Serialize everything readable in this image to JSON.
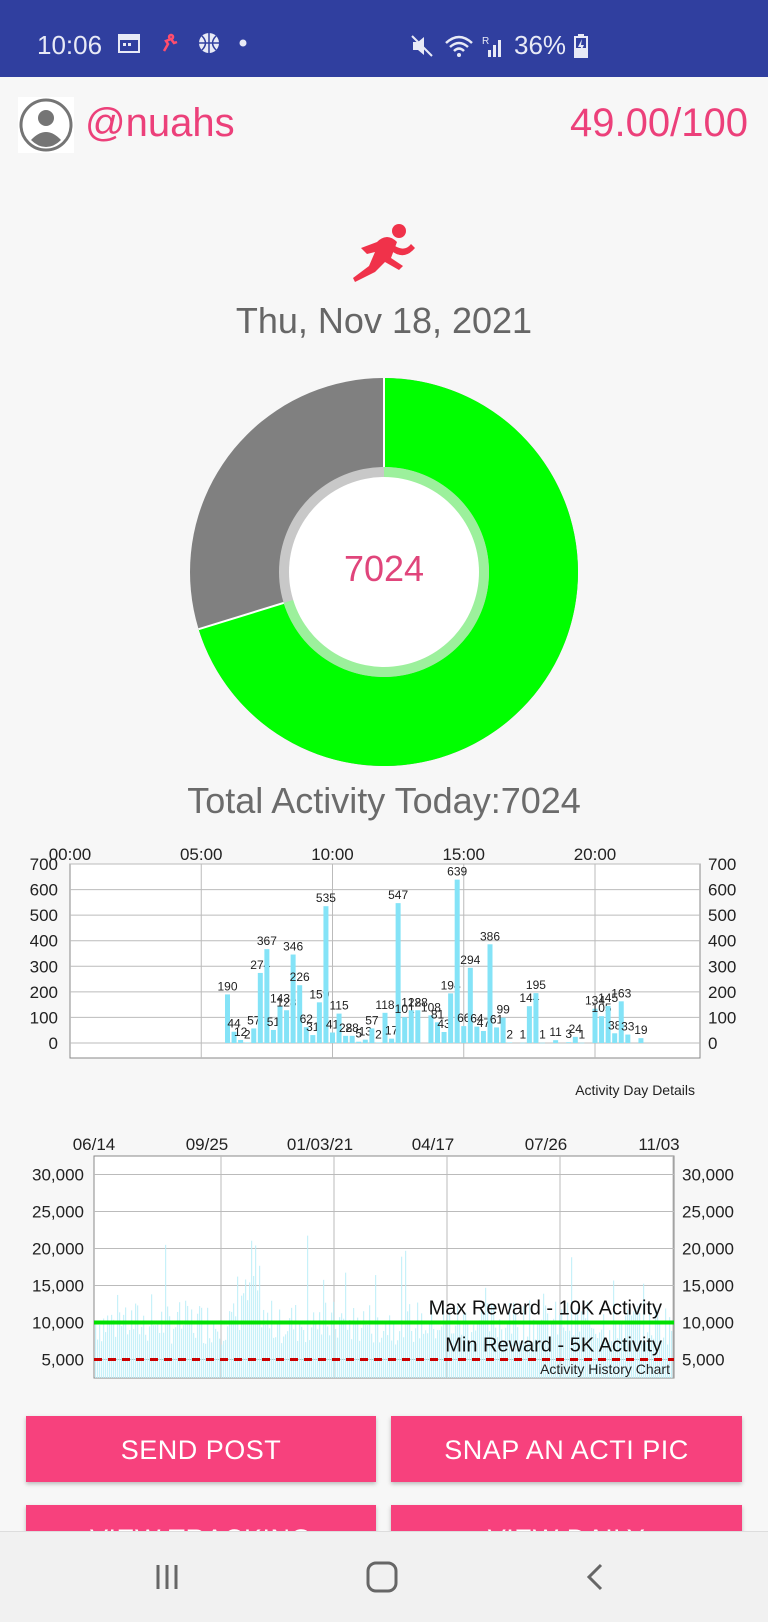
{
  "status_bar": {
    "time": "10:06",
    "battery": "36%"
  },
  "header": {
    "username": "@nuahs",
    "score": "49.00/100"
  },
  "date": "Thu, Nov 18, 2021",
  "donut": {
    "value": "7024",
    "fraction": 0.7024,
    "colors": {
      "filled": "#00ff00",
      "remaining": "#808080",
      "inner_ring": "#9cf09c"
    }
  },
  "total_activity": "Total Activity Today:7024",
  "chart_data": [
    {
      "type": "bar",
      "label": "Activity Day Details",
      "top_ticks": [
        "00:00",
        "05:00",
        "10:00",
        "15:00",
        "20:00"
      ],
      "ylim": [
        0,
        700
      ],
      "yticks": [
        "700",
        "600",
        "500",
        "400",
        "300",
        "200",
        "100",
        "0"
      ],
      "bars": [
        {
          "t": 6.0,
          "v": 190
        },
        {
          "t": 6.25,
          "v": 44
        },
        {
          "t": 6.5,
          "v": 12
        },
        {
          "t": 6.75,
          "v": 2
        },
        {
          "t": 7.0,
          "v": 57
        },
        {
          "t": 7.25,
          "v": 274
        },
        {
          "t": 7.5,
          "v": 367
        },
        {
          "t": 7.75,
          "v": 51
        },
        {
          "t": 8.0,
          "v": 143
        },
        {
          "t": 8.25,
          "v": 128
        },
        {
          "t": 8.5,
          "v": 346
        },
        {
          "t": 8.75,
          "v": 226
        },
        {
          "t": 9.0,
          "v": 62
        },
        {
          "t": 9.25,
          "v": 31
        },
        {
          "t": 9.5,
          "v": 159
        },
        {
          "t": 9.75,
          "v": 535
        },
        {
          "t": 10.0,
          "v": 41
        },
        {
          "t": 10.25,
          "v": 115
        },
        {
          "t": 10.5,
          "v": 28
        },
        {
          "t": 10.75,
          "v": 28
        },
        {
          "t": 11.0,
          "v": 5
        },
        {
          "t": 11.25,
          "v": 13
        },
        {
          "t": 11.5,
          "v": 57
        },
        {
          "t": 11.75,
          "v": 2
        },
        {
          "t": 12.0,
          "v": 118
        },
        {
          "t": 12.25,
          "v": 17
        },
        {
          "t": 12.5,
          "v": 547
        },
        {
          "t": 12.75,
          "v": 101
        },
        {
          "t": 13.0,
          "v": 128
        },
        {
          "t": 13.25,
          "v": 128
        },
        {
          "t": 13.75,
          "v": 108
        },
        {
          "t": 14.0,
          "v": 81
        },
        {
          "t": 14.25,
          "v": 43
        },
        {
          "t": 14.5,
          "v": 194
        },
        {
          "t": 14.75,
          "v": 639
        },
        {
          "t": 15.0,
          "v": 66
        },
        {
          "t": 15.25,
          "v": 294
        },
        {
          "t": 15.5,
          "v": 64
        },
        {
          "t": 15.75,
          "v": 47
        },
        {
          "t": 16.0,
          "v": 386
        },
        {
          "t": 16.25,
          "v": 61
        },
        {
          "t": 16.5,
          "v": 99
        },
        {
          "t": 16.75,
          "v": 2
        },
        {
          "t": 17.25,
          "v": 1
        },
        {
          "t": 17.5,
          "v": 144
        },
        {
          "t": 17.75,
          "v": 195
        },
        {
          "t": 18.0,
          "v": 1
        },
        {
          "t": 18.5,
          "v": 11
        },
        {
          "t": 19.0,
          "v": 3
        },
        {
          "t": 19.25,
          "v": 24
        },
        {
          "t": 19.5,
          "v": 1
        },
        {
          "t": 20.0,
          "v": 134
        },
        {
          "t": 20.25,
          "v": 105
        },
        {
          "t": 20.5,
          "v": 145
        },
        {
          "t": 20.75,
          "v": 38
        },
        {
          "t": 21.0,
          "v": 163
        },
        {
          "t": 21.25,
          "v": 33
        },
        {
          "t": 21.75,
          "v": 19
        }
      ],
      "colors": {
        "bar": "#84e3f7",
        "grid": "#bbbbbb"
      }
    },
    {
      "type": "line",
      "label": "Activity History Chart",
      "top_ticks": [
        "06/14",
        "09/25",
        "01/03/21",
        "04/17",
        "07/26",
        "11/03"
      ],
      "ylim": [
        2500,
        32500
      ],
      "yticks": [
        "30,000",
        "25,000",
        "20,000",
        "15,000",
        "10,000",
        "5,000"
      ],
      "ytick_values": [
        30000,
        25000,
        20000,
        15000,
        10000,
        5000
      ],
      "max_line": {
        "value": 10000,
        "label": "Max Reward - 10K Activity",
        "color": "#00e000"
      },
      "min_line": {
        "value": 5000,
        "label": "Min Reward - 5K Activity",
        "color": "#cc0000"
      },
      "colors": {
        "bar": "#b9eef7",
        "grid": "#bbbbbb"
      }
    }
  ],
  "buttons": {
    "send_post": "SEND POST",
    "snap": "SNAP AN ACTI PIC",
    "view_tracking": "VIEW TRACKING",
    "view_daily": "VIEW DAILY"
  }
}
